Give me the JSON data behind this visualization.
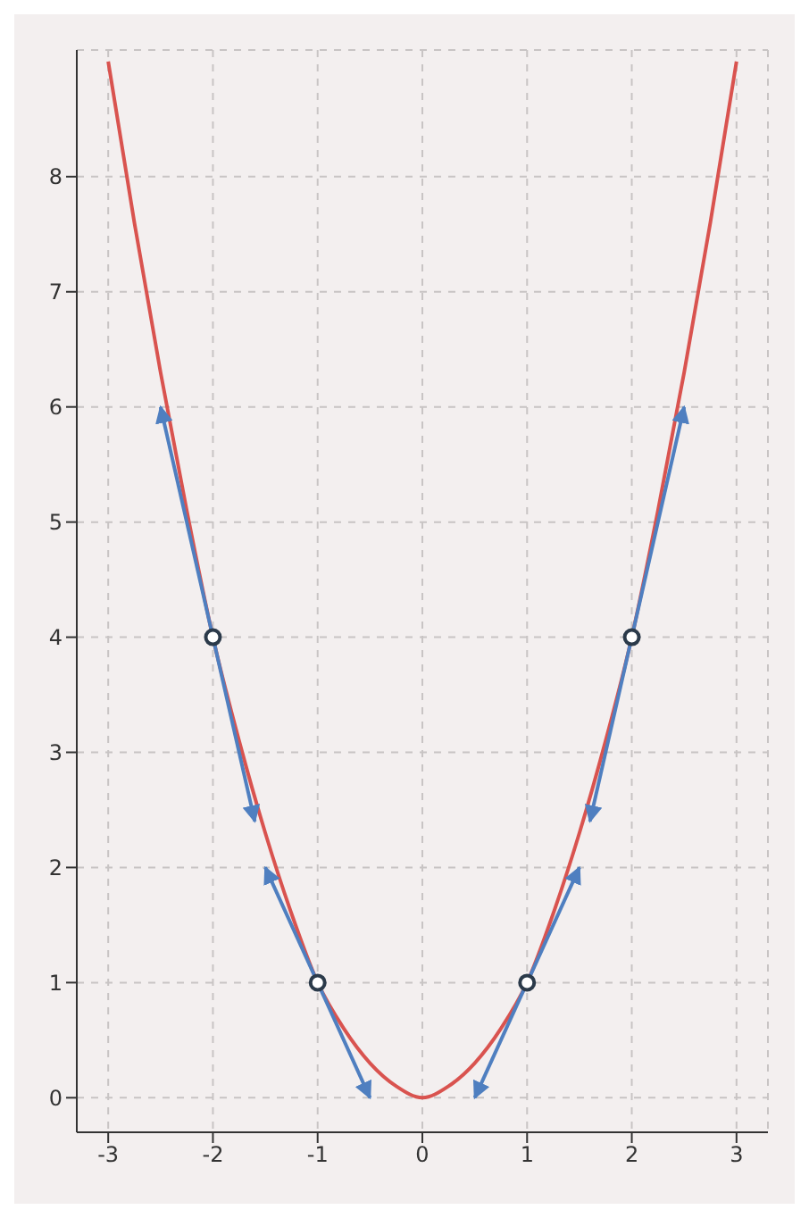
{
  "chart_data": {
    "type": "line",
    "xlim": [
      -3.3,
      3.3
    ],
    "ylim": [
      -0.3,
      9.1
    ],
    "xticks": [
      -3,
      -2,
      -1,
      0,
      1,
      2,
      3
    ],
    "yticks": [
      0,
      1,
      2,
      3,
      4,
      5,
      6,
      7,
      8
    ],
    "grid": true,
    "line_style": "solid",
    "series": [
      {
        "color": "#d9534f",
        "marker": "none",
        "x": [
          -3,
          -2.75,
          -2.5,
          -2.25,
          -2,
          -1.75,
          -1.5,
          -1.25,
          -1,
          -0.75,
          -0.5,
          -0.25,
          0,
          0.25,
          0.5,
          0.75,
          1,
          1.25,
          1.5,
          1.75,
          2,
          2.25,
          2.5,
          2.75,
          3
        ],
        "values": [
          9,
          7.6,
          6.3,
          5.1,
          4,
          3.1,
          2.3,
          1.6,
          1,
          0.6,
          0.3,
          0.1,
          0,
          0.1,
          0.3,
          0.6,
          1,
          1.6,
          2.3,
          3.1,
          4,
          5.1,
          6.3,
          7.6,
          9
        ]
      },
      {
        "color": "#4f7fc0",
        "marker": "none",
        "x": [
          -2.5,
          -1.6
        ],
        "values": [
          6,
          2.4
        ]
      },
      {
        "color": "#4f7fc0",
        "marker": "none",
        "x": [
          -1.5,
          -0.5
        ],
        "values": [
          2,
          0
        ]
      },
      {
        "color": "#4f7fc0",
        "marker": "none",
        "x": [
          0.5,
          1.5
        ],
        "values": [
          0,
          2
        ]
      },
      {
        "color": "#4f7fc0",
        "marker": "none",
        "x": [
          1.6,
          2.5
        ],
        "values": [
          2.4,
          6
        ]
      },
      {
        "type": "scatter",
        "color": "#2b3a4a",
        "marker": "circle",
        "x": [
          -2,
          -1,
          1,
          2
        ],
        "values": [
          4,
          1,
          1,
          4
        ]
      }
    ]
  }
}
